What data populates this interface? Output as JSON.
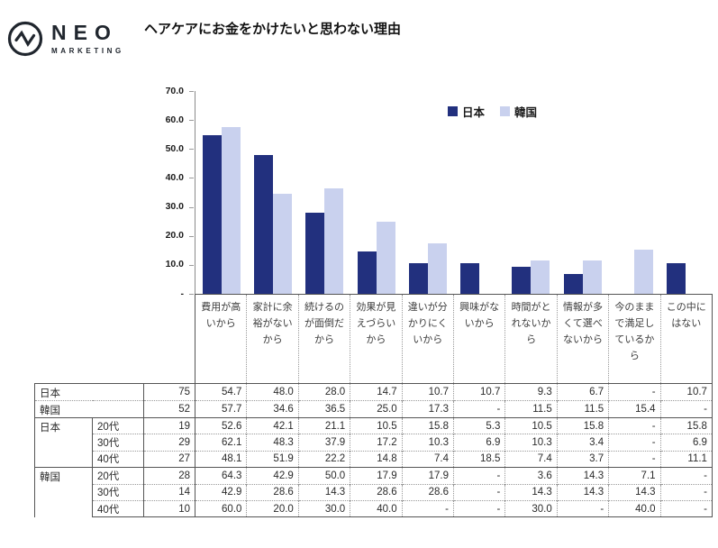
{
  "logo": {
    "name": "NEO",
    "subtitle": "MARKETING"
  },
  "title": "ヘアケアにお金をかけたいと思わない理由",
  "chart_data": {
    "type": "bar",
    "title": "ヘアケアにお金をかけたいと思わない理由",
    "categories": [
      "費用が高いから",
      "家計に余裕がないから",
      "続けるのが面倒だから",
      "効果が見えづらいから",
      "違いが分かりにくいから",
      "興味がないから",
      "時間がとれないから",
      "情報が多くて選べないから",
      "今のままで満足しているから",
      "この中にはない"
    ],
    "series": [
      {
        "key": "japan",
        "name": "日本",
        "color": "#22307E",
        "values": [
          54.7,
          48.0,
          28.0,
          14.7,
          10.7,
          10.7,
          9.3,
          6.7,
          null,
          10.7
        ]
      },
      {
        "key": "korea",
        "name": "韓国",
        "color": "#C9D1EE",
        "values": [
          57.7,
          34.6,
          36.5,
          25.0,
          17.3,
          null,
          11.5,
          11.5,
          15.4,
          null
        ]
      }
    ],
    "ylim": [
      0,
      70
    ],
    "ytick_labels": [
      "70.0",
      "60.0",
      "50.0",
      "40.0",
      "30.0",
      "20.0",
      "10.0",
      "-"
    ],
    "grid": false,
    "legend_position": "inside-top"
  },
  "table": {
    "rows": [
      {
        "group": "日本",
        "sub": null,
        "n": "75",
        "span": "all",
        "border": "solid",
        "values": [
          "54.7",
          "48.0",
          "28.0",
          "14.7",
          "10.7",
          "10.7",
          "9.3",
          "6.7",
          "-",
          "10.7"
        ]
      },
      {
        "group": "韓国",
        "sub": null,
        "n": "52",
        "span": "all",
        "border": "dot",
        "values": [
          "57.7",
          "34.6",
          "36.5",
          "25.0",
          "17.3",
          "-",
          "11.5",
          "11.5",
          "15.4",
          "-"
        ]
      },
      {
        "group": "日本",
        "sub": "20代",
        "n": "19",
        "span": "start",
        "border": "solid",
        "values": [
          "52.6",
          "42.1",
          "21.1",
          "10.5",
          "15.8",
          "5.3",
          "10.5",
          "15.8",
          "-",
          "15.8"
        ]
      },
      {
        "group": null,
        "sub": "30代",
        "n": "29",
        "span": "none",
        "border": "dot",
        "values": [
          "62.1",
          "48.3",
          "37.9",
          "17.2",
          "10.3",
          "6.9",
          "10.3",
          "3.4",
          "-",
          "6.9"
        ]
      },
      {
        "group": null,
        "sub": "40代",
        "n": "27",
        "span": "none",
        "border": "dot",
        "values": [
          "48.1",
          "51.9",
          "22.2",
          "14.8",
          "7.4",
          "18.5",
          "7.4",
          "3.7",
          "-",
          "11.1"
        ]
      },
      {
        "group": "韓国",
        "sub": "20代",
        "n": "28",
        "span": "start",
        "border": "solid",
        "values": [
          "64.3",
          "42.9",
          "50.0",
          "17.9",
          "17.9",
          "-",
          "3.6",
          "14.3",
          "7.1",
          "-"
        ]
      },
      {
        "group": null,
        "sub": "30代",
        "n": "14",
        "span": "none",
        "border": "dot",
        "values": [
          "42.9",
          "28.6",
          "14.3",
          "28.6",
          "28.6",
          "-",
          "14.3",
          "14.3",
          "14.3",
          "-"
        ]
      },
      {
        "group": null,
        "sub": "40代",
        "n": "10",
        "span": "none",
        "border": "dot",
        "values": [
          "60.0",
          "20.0",
          "30.0",
          "40.0",
          "-",
          "-",
          "30.0",
          "-",
          "40.0",
          "-"
        ]
      }
    ]
  }
}
